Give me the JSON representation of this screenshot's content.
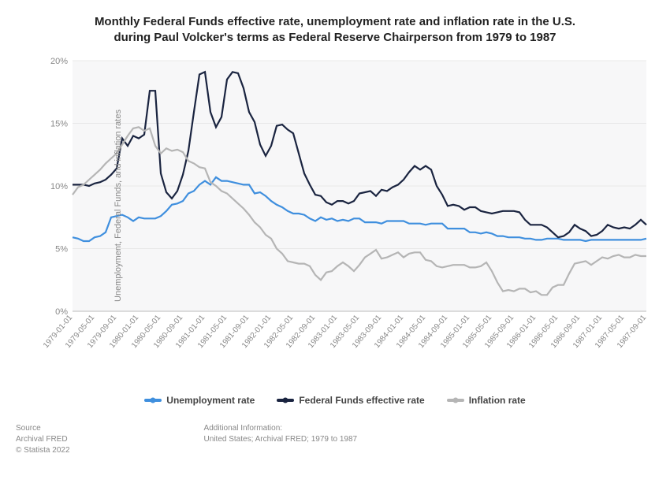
{
  "title_line1": "Monthly Federal Funds effective rate, unemployment rate and inflation rate in the U.S.",
  "title_line2": "during Paul Volcker's terms as Federal Reserve Chairperson from 1979 to 1987",
  "title_fontsize": 15,
  "ylabel": "Unemployment, Federal Funds, and inflation rates",
  "chart": {
    "type": "line",
    "background_color": "#ffffff",
    "plot_bg": "#f7f7f8",
    "grid_color": "#e8e8e8",
    "ylim": [
      0,
      20
    ],
    "ytick_step": 5,
    "ytick_format_suffix": "%",
    "xlabels": [
      "1979-01-01",
      "1979-05-01",
      "1979-09-01",
      "1980-01-01",
      "1980-05-01",
      "1980-09-01",
      "1981-01-01",
      "1981-05-01",
      "1981-09-01",
      "1982-01-01",
      "1982-05-01",
      "1982-09-01",
      "1983-01-01",
      "1983-05-01",
      "1983-09-01",
      "1984-01-01",
      "1984-05-01",
      "1984-09-01",
      "1985-01-01",
      "1985-05-01",
      "1985-09-01",
      "1986-01-01",
      "1986-05-01",
      "1986-09-01",
      "1987-01-01",
      "1987-05-01",
      "1987-09-01"
    ],
    "series": [
      {
        "name": "Unemployment rate",
        "color": "#3f8fde",
        "values": [
          5.9,
          5.8,
          5.6,
          5.6,
          5.9,
          6.0,
          6.3,
          7.5,
          7.6,
          7.7,
          7.5,
          7.2,
          7.5,
          7.4,
          7.4,
          7.4,
          7.6,
          8.0,
          8.5,
          8.6,
          8.8,
          9.4,
          9.6,
          10.1,
          10.4,
          10.1,
          10.7,
          10.4,
          10.4,
          10.3,
          10.2,
          10.1,
          10.1,
          9.4,
          9.5,
          9.2,
          8.8,
          8.5,
          8.3,
          8.0,
          7.8,
          7.8,
          7.7,
          7.4,
          7.2,
          7.5,
          7.3,
          7.4,
          7.2,
          7.3,
          7.2,
          7.4,
          7.4,
          7.1,
          7.1,
          7.1,
          7.0,
          7.2,
          7.2,
          7.2,
          7.2,
          7.0,
          7.0,
          7.0,
          6.9,
          7.0,
          7.0,
          7.0,
          6.6,
          6.6,
          6.6,
          6.6,
          6.3,
          6.3,
          6.2,
          6.3,
          6.2,
          6.0,
          6.0,
          5.9,
          5.9,
          5.9,
          5.8,
          5.8,
          5.7,
          5.7,
          5.8,
          5.8,
          5.8,
          5.7,
          5.7,
          5.7,
          5.7,
          5.6,
          5.7,
          5.7,
          5.7,
          5.7,
          5.7,
          5.7,
          5.7,
          5.7,
          5.7,
          5.7,
          5.8
        ]
      },
      {
        "name": "Federal Funds effective rate",
        "color": "#1a2440",
        "values": [
          10.1,
          10.1,
          10.1,
          10.0,
          10.2,
          10.3,
          10.5,
          10.9,
          11.4,
          13.8,
          13.2,
          14.0,
          13.8,
          14.1,
          17.6,
          17.6,
          11.0,
          9.5,
          9.0,
          9.6,
          10.9,
          12.8,
          15.9,
          18.9,
          19.1,
          15.9,
          14.7,
          15.5,
          18.5,
          19.1,
          19.0,
          17.8,
          15.9,
          15.1,
          13.3,
          12.4,
          13.2,
          14.8,
          14.9,
          14.5,
          14.2,
          12.6,
          11.0,
          10.1,
          9.3,
          9.2,
          8.7,
          8.5,
          8.8,
          8.8,
          8.6,
          8.8,
          9.4,
          9.5,
          9.6,
          9.2,
          9.7,
          9.6,
          9.9,
          10.1,
          10.5,
          11.1,
          11.6,
          11.3,
          11.6,
          11.3,
          10.0,
          9.3,
          8.4,
          8.5,
          8.4,
          8.1,
          8.3,
          8.3,
          8.0,
          7.9,
          7.8,
          7.9,
          8.0,
          8.0,
          8.0,
          7.9,
          7.3,
          6.9,
          6.9,
          6.9,
          6.7,
          6.3,
          5.9,
          6.0,
          6.3,
          6.9,
          6.6,
          6.4,
          6.0,
          6.1,
          6.4,
          6.9,
          6.7,
          6.6,
          6.7,
          6.6,
          6.9,
          7.3,
          6.9
        ]
      },
      {
        "name": "Inflation rate",
        "color": "#b5b5b5",
        "values": [
          9.3,
          9.9,
          10.1,
          10.5,
          10.9,
          11.3,
          11.8,
          12.2,
          12.6,
          13.3,
          14.0,
          14.6,
          14.7,
          14.4,
          14.6,
          13.2,
          12.6,
          13.0,
          12.8,
          12.9,
          12.7,
          12.0,
          11.8,
          11.5,
          11.4,
          10.3,
          10.0,
          9.6,
          9.4,
          9.0,
          8.6,
          8.2,
          7.7,
          7.1,
          6.7,
          6.1,
          5.8,
          5.0,
          4.6,
          4.0,
          3.9,
          3.8,
          3.8,
          3.6,
          2.9,
          2.5,
          3.1,
          3.2,
          3.6,
          3.9,
          3.6,
          3.2,
          3.7,
          4.3,
          4.6,
          4.9,
          4.2,
          4.3,
          4.5,
          4.7,
          4.3,
          4.6,
          4.7,
          4.7,
          4.1,
          4.0,
          3.6,
          3.5,
          3.6,
          3.7,
          3.7,
          3.7,
          3.5,
          3.5,
          3.6,
          3.9,
          3.2,
          2.3,
          1.6,
          1.7,
          1.6,
          1.8,
          1.8,
          1.5,
          1.6,
          1.3,
          1.3,
          1.9,
          2.1,
          2.1,
          3.0,
          3.8,
          3.9,
          4.0,
          3.7,
          4.0,
          4.3,
          4.2,
          4.4,
          4.5,
          4.3,
          4.3,
          4.5,
          4.4,
          4.4
        ]
      }
    ],
    "line_width": 2.2,
    "xtick_fontsize": 10,
    "ytick_fontsize": 11,
    "legend_fontsize": 12
  },
  "legend_labels": {
    "unemployment": "Unemployment rate",
    "fedfunds": "Federal Funds effective rate",
    "inflation": "Inflation rate"
  },
  "footer": {
    "source_header": "Source",
    "source_line1": "Archival FRED",
    "source_line2": "© Statista 2022",
    "addinfo_header": "Additional Information:",
    "addinfo_text": "United States; Archival FRED; 1979 to 1987"
  }
}
